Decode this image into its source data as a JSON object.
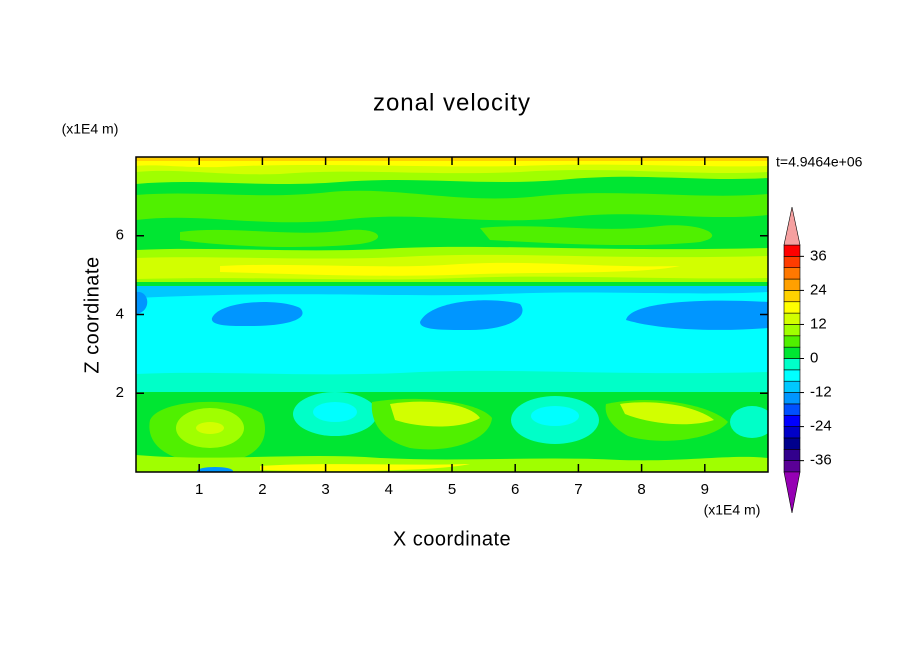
{
  "chart_data": {
    "type": "contour",
    "title": "zonal velocity",
    "x_label": "X coordinate",
    "y_label": "Z coordinate",
    "x_unit": "(x1E4 m)",
    "y_unit": "(x1E4 m)",
    "annotation": "t=4.9464e+06",
    "xlim": [
      0,
      10
    ],
    "ylim": [
      0,
      8
    ],
    "xticks": [
      1,
      2,
      3,
      4,
      5,
      6,
      7,
      8,
      9
    ],
    "yticks": [
      2,
      4,
      6
    ],
    "colorbar": {
      "levels": [
        -40,
        -36,
        -32,
        -28,
        -24,
        -20,
        -16,
        -12,
        -8,
        -4,
        0,
        4,
        8,
        12,
        16,
        20,
        24,
        28,
        32,
        36,
        40
      ],
      "colors": [
        "#5a0096",
        "#32008c",
        "#00008c",
        "#0000c8",
        "#0000ff",
        "#0050ff",
        "#0096ff",
        "#00c8ff",
        "#00ffff",
        "#00ffc8",
        "#00e632",
        "#50f000",
        "#a0ff00",
        "#d2ff00",
        "#ffff00",
        "#ffd200",
        "#ffa000",
        "#ff7800",
        "#ff3c00",
        "#ff0000"
      ],
      "over_color": "#f5a0a0",
      "under_color": "#9600b4",
      "ticks": [
        -36,
        -24,
        -12,
        0,
        12,
        24,
        36
      ]
    }
  }
}
